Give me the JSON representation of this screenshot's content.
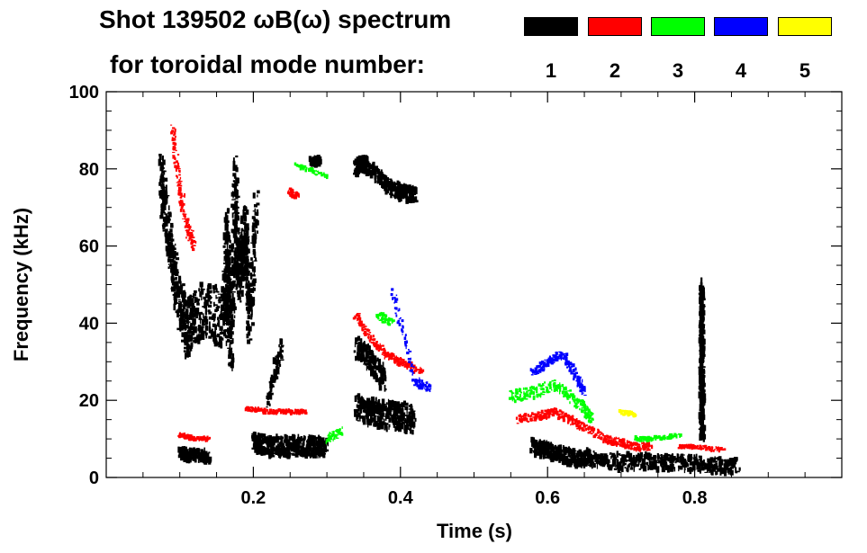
{
  "chart_data": {
    "type": "spectrogram",
    "title": "Shot 139502 ωB(ω) spectrum",
    "subtitle": "for toroidal mode number:",
    "xlabel": "Time (s)",
    "ylabel": "Frequency (kHz)",
    "xlim": [
      0.0,
      1.0
    ],
    "ylim": [
      0,
      100
    ],
    "x_ticks": [
      0.2,
      0.4,
      0.6,
      0.8
    ],
    "x_tick_labels": [
      "0.2",
      "0.4",
      "0.6",
      "0.8"
    ],
    "y_ticks": [
      0,
      20,
      40,
      60,
      80,
      100
    ],
    "y_tick_labels": [
      "0",
      "20",
      "40",
      "60",
      "80",
      "100"
    ],
    "legend": [
      {
        "label": "1",
        "color": "#000000"
      },
      {
        "label": "2",
        "color": "#ff0000"
      },
      {
        "label": "3",
        "color": "#00ff00"
      },
      {
        "label": "4",
        "color": "#0000ff"
      },
      {
        "label": "5",
        "color": "#ffff00"
      }
    ],
    "features": [
      {
        "n": 1,
        "points": [
          [
            0.075,
            80
          ],
          [
            0.08,
            70
          ],
          [
            0.09,
            55
          ],
          [
            0.1,
            45
          ],
          [
            0.11,
            38
          ],
          [
            0.12,
            42
          ],
          [
            0.14,
            44
          ],
          [
            0.16,
            40
          ],
          [
            0.18,
            55
          ],
          [
            0.19,
            65
          ]
        ],
        "spread": 14
      },
      {
        "n": 1,
        "points": [
          [
            0.16,
            42
          ],
          [
            0.165,
            65
          ],
          [
            0.17,
            30
          ],
          [
            0.175,
            78
          ],
          [
            0.18,
            50
          ],
          [
            0.19,
            62
          ],
          [
            0.195,
            40
          ],
          [
            0.205,
            72
          ]
        ],
        "spread": 12
      },
      {
        "n": 1,
        "points": [
          [
            0.2,
            9
          ],
          [
            0.22,
            8
          ],
          [
            0.24,
            8
          ],
          [
            0.26,
            8
          ],
          [
            0.28,
            8
          ],
          [
            0.3,
            8
          ]
        ],
        "spread": 5
      },
      {
        "n": 1,
        "points": [
          [
            0.22,
            20
          ],
          [
            0.24,
            35
          ]
        ],
        "spread": 4
      },
      {
        "n": 1,
        "points": [
          [
            0.28,
            82
          ],
          [
            0.29,
            82
          ]
        ],
        "spread": 2
      },
      {
        "n": 1,
        "points": [
          [
            0.34,
            18
          ],
          [
            0.36,
            17
          ],
          [
            0.38,
            16
          ],
          [
            0.4,
            16
          ],
          [
            0.42,
            15
          ]
        ],
        "spread": 7
      },
      {
        "n": 1,
        "points": [
          [
            0.34,
            34
          ],
          [
            0.36,
            30
          ],
          [
            0.38,
            25
          ]
        ],
        "spread": 6
      },
      {
        "n": 1,
        "points": [
          [
            0.34,
            80
          ],
          [
            0.35,
            82
          ],
          [
            0.38,
            76
          ],
          [
            0.4,
            74
          ],
          [
            0.42,
            73
          ]
        ],
        "spread": 4
      },
      {
        "n": 1,
        "points": [
          [
            0.58,
            8
          ],
          [
            0.6,
            7
          ],
          [
            0.62,
            6
          ],
          [
            0.64,
            5
          ],
          [
            0.66,
            5
          ],
          [
            0.7,
            4
          ],
          [
            0.74,
            4
          ],
          [
            0.78,
            4
          ],
          [
            0.82,
            3
          ],
          [
            0.86,
            3
          ]
        ],
        "spread": 4
      },
      {
        "n": 1,
        "points": [
          [
            0.81,
            10
          ],
          [
            0.81,
            20
          ],
          [
            0.81,
            30
          ],
          [
            0.81,
            40
          ],
          [
            0.81,
            50
          ]
        ],
        "spread": 3
      },
      {
        "n": 1,
        "points": [
          [
            0.1,
            6
          ],
          [
            0.12,
            6
          ],
          [
            0.14,
            5
          ]
        ],
        "spread": 3
      },
      {
        "n": 2,
        "points": [
          [
            0.09,
            90
          ],
          [
            0.1,
            75
          ],
          [
            0.11,
            65
          ],
          [
            0.12,
            60
          ]
        ],
        "spread": 4
      },
      {
        "n": 2,
        "points": [
          [
            0.19,
            18
          ],
          [
            0.22,
            17
          ],
          [
            0.25,
            17
          ],
          [
            0.27,
            17
          ]
        ],
        "spread": 1
      },
      {
        "n": 2,
        "points": [
          [
            0.25,
            74
          ],
          [
            0.26,
            73
          ]
        ],
        "spread": 2
      },
      {
        "n": 2,
        "points": [
          [
            0.34,
            42
          ],
          [
            0.36,
            36
          ],
          [
            0.38,
            32
          ],
          [
            0.4,
            30
          ],
          [
            0.43,
            27
          ]
        ],
        "spread": 2
      },
      {
        "n": 2,
        "points": [
          [
            0.56,
            15
          ],
          [
            0.59,
            16
          ],
          [
            0.61,
            17
          ],
          [
            0.63,
            15
          ],
          [
            0.65,
            13
          ],
          [
            0.68,
            10
          ],
          [
            0.7,
            9
          ],
          [
            0.72,
            8
          ],
          [
            0.74,
            8
          ]
        ],
        "spread": 2
      },
      {
        "n": 2,
        "points": [
          [
            0.1,
            11
          ],
          [
            0.12,
            10
          ],
          [
            0.14,
            10
          ]
        ],
        "spread": 1
      },
      {
        "n": 2,
        "points": [
          [
            0.78,
            8
          ],
          [
            0.8,
            8
          ],
          [
            0.84,
            7
          ]
        ],
        "spread": 1
      },
      {
        "n": 3,
        "points": [
          [
            0.26,
            81
          ],
          [
            0.3,
            78
          ]
        ],
        "spread": 1
      },
      {
        "n": 3,
        "points": [
          [
            0.37,
            42
          ],
          [
            0.39,
            40
          ]
        ],
        "spread": 2
      },
      {
        "n": 3,
        "points": [
          [
            0.55,
            21
          ],
          [
            0.58,
            22
          ],
          [
            0.61,
            24
          ],
          [
            0.63,
            21
          ],
          [
            0.65,
            18
          ],
          [
            0.66,
            15
          ]
        ],
        "spread": 3
      },
      {
        "n": 3,
        "points": [
          [
            0.3,
            10
          ],
          [
            0.32,
            12
          ]
        ],
        "spread": 2
      },
      {
        "n": 3,
        "points": [
          [
            0.72,
            10
          ],
          [
            0.74,
            10
          ],
          [
            0.78,
            11
          ]
        ],
        "spread": 1
      },
      {
        "n": 4,
        "points": [
          [
            0.58,
            27
          ],
          [
            0.6,
            30
          ],
          [
            0.62,
            32
          ],
          [
            0.64,
            26
          ],
          [
            0.65,
            22
          ]
        ],
        "spread": 2
      },
      {
        "n": 4,
        "points": [
          [
            0.39,
            48
          ],
          [
            0.42,
            25
          ],
          [
            0.44,
            23
          ]
        ],
        "spread": 2
      },
      {
        "n": 5,
        "points": [
          [
            0.7,
            17
          ],
          [
            0.72,
            16
          ]
        ],
        "spread": 1
      }
    ]
  }
}
